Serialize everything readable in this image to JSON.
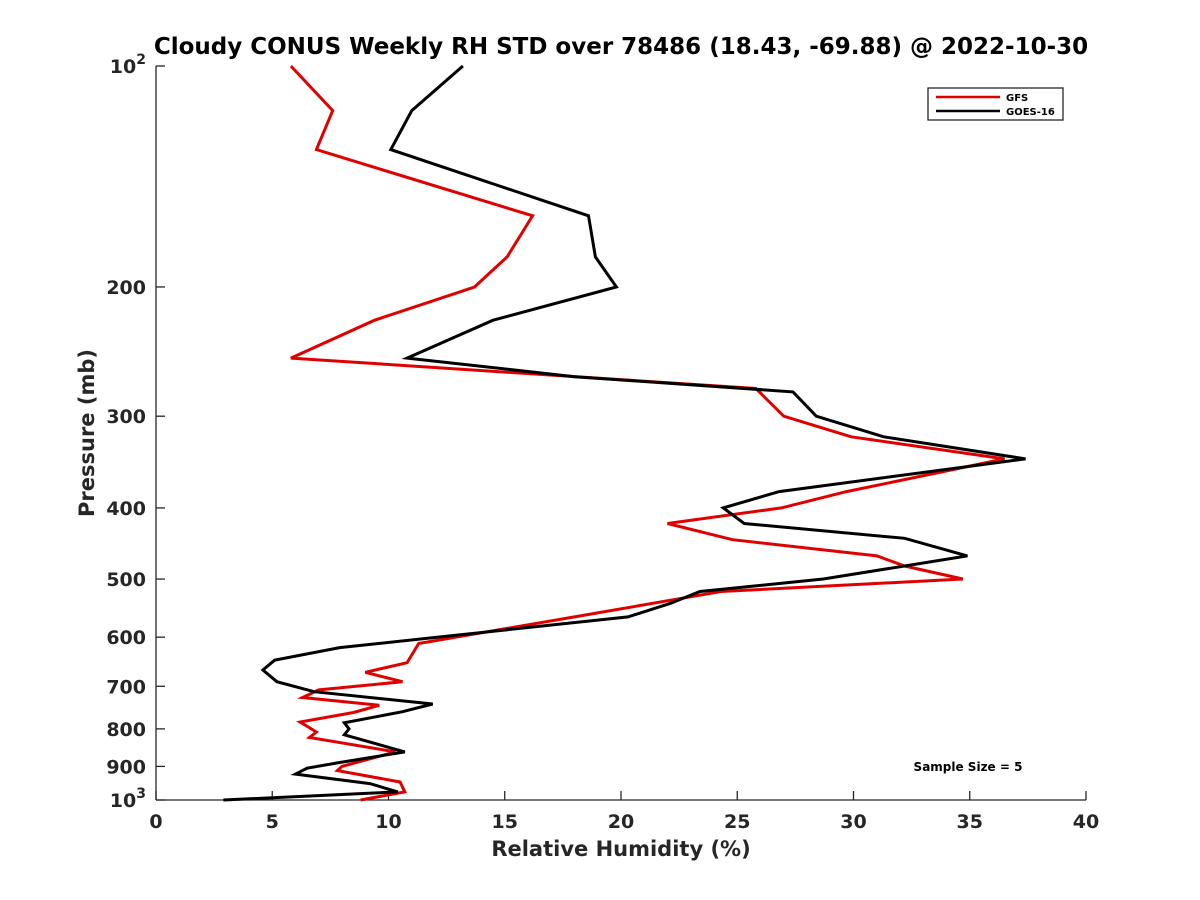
{
  "chart_data": {
    "type": "line",
    "title": "Cloudy CONUS Weekly RH STD over 78486 (18.43, -69.88) @ 2022-10-30",
    "xlabel": "Relative Humidity (%)",
    "ylabel": "Pressure (mb)",
    "xlim": [
      0,
      40
    ],
    "ylim": [
      100,
      1000
    ],
    "yscale": "log",
    "y_reversed": true,
    "grid": false,
    "legend_position": "top-right",
    "x_ticks": [
      "0",
      "5",
      "10",
      "15",
      "20",
      "25",
      "30",
      "35",
      "40"
    ],
    "y_ticks": [
      {
        "value": 100,
        "base": "10",
        "exp": "2"
      },
      {
        "value": 200,
        "label": "200"
      },
      {
        "value": 300,
        "label": "300"
      },
      {
        "value": 400,
        "label": "400"
      },
      {
        "value": 500,
        "label": "500"
      },
      {
        "value": 600,
        "label": "600"
      },
      {
        "value": 700,
        "label": "700"
      },
      {
        "value": 800,
        "label": "800"
      },
      {
        "value": 900,
        "label": "900"
      },
      {
        "value": 1000,
        "base": "10",
        "exp": "3"
      }
    ],
    "annotation": "Sample Size = 5",
    "series": [
      {
        "name": "GFS",
        "color": "#e00000",
        "points": [
          [
            5.8,
            100
          ],
          [
            7.6,
            115
          ],
          [
            6.9,
            130
          ],
          [
            16.2,
            160
          ],
          [
            15.1,
            182
          ],
          [
            13.7,
            200
          ],
          [
            9.4,
            222
          ],
          [
            5.8,
            250
          ],
          [
            25.8,
            275
          ],
          [
            27.0,
            300
          ],
          [
            29.9,
            320
          ],
          [
            36.5,
            343
          ],
          [
            29.7,
            380
          ],
          [
            26.9,
            400
          ],
          [
            22.0,
            420
          ],
          [
            24.8,
            442
          ],
          [
            31.0,
            465
          ],
          [
            32.2,
            480
          ],
          [
            34.7,
            500
          ],
          [
            24.3,
            520
          ],
          [
            18.0,
            563
          ],
          [
            11.3,
            612
          ],
          [
            10.8,
            650
          ],
          [
            9.0,
            670
          ],
          [
            10.6,
            690
          ],
          [
            7.0,
            708
          ],
          [
            6.3,
            725
          ],
          [
            9.6,
            743
          ],
          [
            8.5,
            760
          ],
          [
            6.2,
            783
          ],
          [
            6.9,
            808
          ],
          [
            6.6,
            822
          ],
          [
            10.3,
            860
          ],
          [
            8.0,
            900
          ],
          [
            7.8,
            912
          ],
          [
            10.5,
            945
          ],
          [
            10.7,
            975
          ],
          [
            8.8,
            1000
          ]
        ]
      },
      {
        "name": "GOES-16",
        "color": "#000000",
        "points": [
          [
            13.2,
            100
          ],
          [
            11.0,
            115
          ],
          [
            10.1,
            130
          ],
          [
            18.6,
            160
          ],
          [
            18.9,
            182
          ],
          [
            19.8,
            200
          ],
          [
            14.5,
            222
          ],
          [
            10.8,
            250
          ],
          [
            18.0,
            265
          ],
          [
            27.4,
            278
          ],
          [
            28.4,
            300
          ],
          [
            31.3,
            320
          ],
          [
            37.4,
            343
          ],
          [
            26.8,
            380
          ],
          [
            24.4,
            400
          ],
          [
            25.3,
            420
          ],
          [
            32.2,
            440
          ],
          [
            34.9,
            465
          ],
          [
            28.7,
            500
          ],
          [
            23.4,
            520
          ],
          [
            22.1,
            540
          ],
          [
            20.3,
            563
          ],
          [
            7.9,
            620
          ],
          [
            5.1,
            645
          ],
          [
            4.6,
            665
          ],
          [
            5.2,
            690
          ],
          [
            6.8,
            712
          ],
          [
            11.9,
            740
          ],
          [
            10.6,
            758
          ],
          [
            8.1,
            785
          ],
          [
            8.3,
            800
          ],
          [
            8.1,
            815
          ],
          [
            10.7,
            860
          ],
          [
            7.8,
            890
          ],
          [
            6.5,
            905
          ],
          [
            6.0,
            922
          ],
          [
            9.2,
            950
          ],
          [
            10.4,
            975
          ],
          [
            2.9,
            1000
          ]
        ]
      }
    ]
  }
}
